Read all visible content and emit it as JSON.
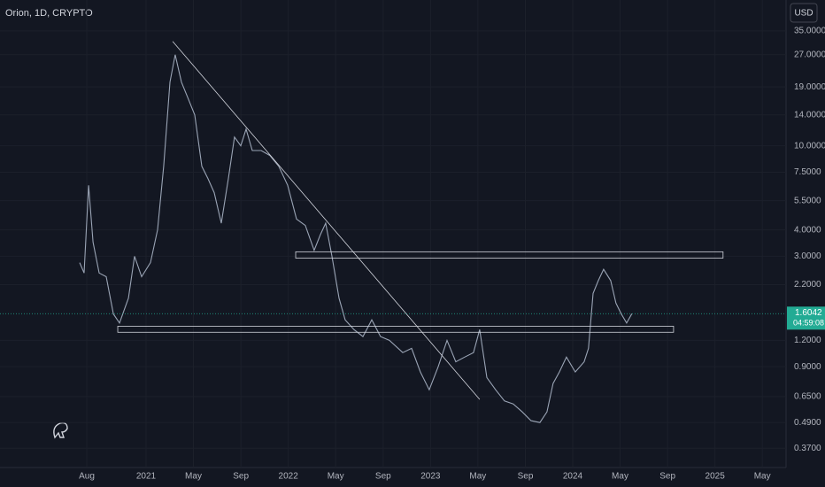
{
  "chart_data": {
    "type": "line",
    "title": "Orion, 1D, CRYPTO",
    "currency": "USD",
    "log_scale": true,
    "grid": true,
    "xlim": [
      2019.973,
      2025.5
    ],
    "ylim": [
      0.3,
      49
    ],
    "xticks": [
      {
        "value": 2020.583,
        "label": "Aug"
      },
      {
        "value": 2021,
        "label": "2021"
      },
      {
        "value": 2021.333,
        "label": "May"
      },
      {
        "value": 2021.667,
        "label": "Sep"
      },
      {
        "value": 2022,
        "label": "2022"
      },
      {
        "value": 2022.333,
        "label": "May"
      },
      {
        "value": 2022.667,
        "label": "Sep"
      },
      {
        "value": 2023,
        "label": "2023"
      },
      {
        "value": 2023.333,
        "label": "May"
      },
      {
        "value": 2023.667,
        "label": "Sep"
      },
      {
        "value": 2024,
        "label": "2024"
      },
      {
        "value": 2024.333,
        "label": "May"
      },
      {
        "value": 2024.667,
        "label": "Sep"
      },
      {
        "value": 2025,
        "label": "2025"
      },
      {
        "value": 2025.333,
        "label": "May"
      }
    ],
    "yticks": [
      {
        "value": 35,
        "label": "35.0000"
      },
      {
        "value": 27,
        "label": "27.0000"
      },
      {
        "value": 19,
        "label": "19.0000"
      },
      {
        "value": 14,
        "label": "14.0000"
      },
      {
        "value": 10,
        "label": "10.0000"
      },
      {
        "value": 7.5,
        "label": "7.5000"
      },
      {
        "value": 5.5,
        "label": "5.5000"
      },
      {
        "value": 4,
        "label": "4.0000"
      },
      {
        "value": 3,
        "label": "3.0000"
      },
      {
        "value": 2.2,
        "label": "2.2000"
      },
      {
        "value": 1.2,
        "label": "1.2000"
      },
      {
        "value": 0.9,
        "label": "0.9000"
      },
      {
        "value": 0.65,
        "label": "0.6500"
      },
      {
        "value": 0.49,
        "label": "0.4900"
      },
      {
        "value": 0.37,
        "label": "0.3700"
      }
    ],
    "series": [
      {
        "color": "#9aa4b5",
        "x": [
          2020.533,
          2020.564,
          2020.596,
          2020.627,
          2020.67,
          2020.72,
          2020.77,
          2020.813,
          2020.876,
          2020.919,
          2020.969,
          2021.031,
          2021.081,
          2021.124,
          2021.168,
          2021.205,
          2021.249,
          2021.292,
          2021.342,
          2021.392,
          2021.435,
          2021.479,
          2021.529,
          2021.579,
          2021.622,
          2021.666,
          2021.703,
          2021.747,
          2021.809,
          2021.871,
          2021.933,
          2021.996,
          2022.058,
          2022.12,
          2022.182,
          2022.226,
          2022.263,
          2022.307,
          2022.357,
          2022.4,
          2022.462,
          2022.525,
          2022.587,
          2022.649,
          2022.711,
          2022.805,
          2022.867,
          2022.929,
          2022.991,
          2023.054,
          2023.116,
          2023.178,
          2023.24,
          2023.302,
          2023.346,
          2023.396,
          2023.458,
          2023.52,
          2023.582,
          2023.645,
          2023.707,
          2023.769,
          2023.819,
          2023.862,
          2023.906,
          2023.956,
          2024.018,
          2024.08,
          2024.111,
          2024.143,
          2024.18,
          2024.217,
          2024.267,
          2024.304,
          2024.342,
          2024.379,
          2024.416
        ],
        "values": [
          2.8,
          2.5,
          6.5,
          3.5,
          2.5,
          2.4,
          1.6,
          1.45,
          1.9,
          3.0,
          2.4,
          2.8,
          4.0,
          8,
          20,
          27,
          20,
          17,
          14,
          8,
          7,
          6,
          4.3,
          7,
          11,
          10,
          12,
          9.5,
          9.5,
          9,
          8,
          6.5,
          4.5,
          4.2,
          3.2,
          3.8,
          4.3,
          3.0,
          1.9,
          1.5,
          1.35,
          1.25,
          1.5,
          1.25,
          1.2,
          1.05,
          1.1,
          0.85,
          0.7,
          0.9,
          1.2,
          0.95,
          1.0,
          1.05,
          1.35,
          0.8,
          0.7,
          0.62,
          0.6,
          0.55,
          0.5,
          0.49,
          0.55,
          0.75,
          0.85,
          1.0,
          0.85,
          0.95,
          1.1,
          2.0,
          2.3,
          2.6,
          2.3,
          1.8,
          1.6,
          1.45,
          1.6042
        ]
      }
    ],
    "trendline": {
      "x": [
        2021.187,
        2023.346
      ],
      "y": [
        31.2,
        0.63
      ]
    },
    "zones": [
      {
        "x": [
          2022.052,
          2025.057
        ],
        "y": [
          3.15,
          2.94
        ]
      },
      {
        "x": [
          2020.801,
          2024.709
        ],
        "y": [
          1.4,
          1.31
        ]
      }
    ],
    "last_price": 1.6042,
    "countdown": "04:59:08"
  }
}
